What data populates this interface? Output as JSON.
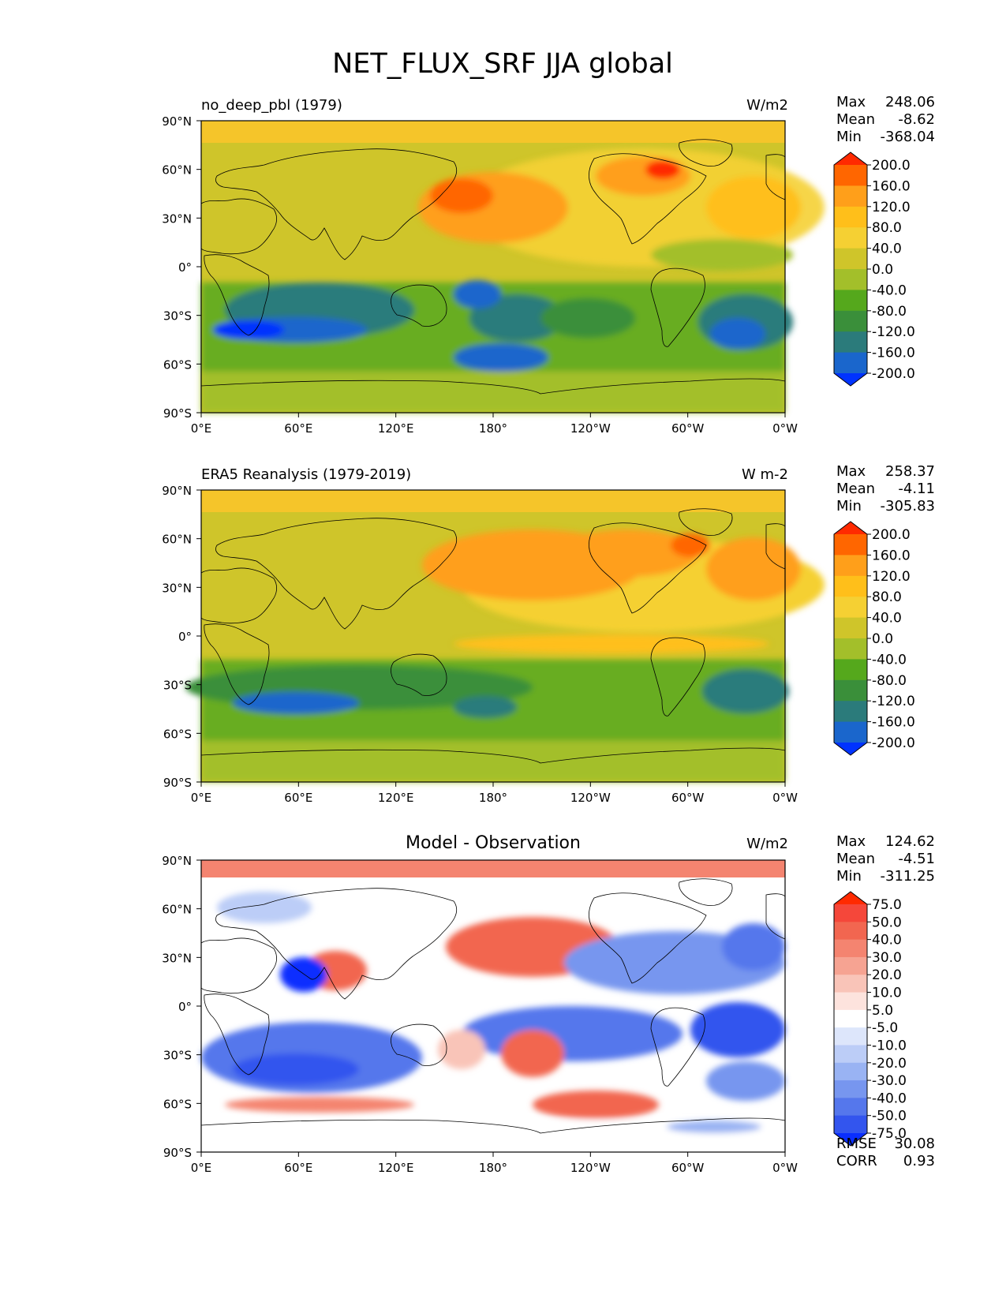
{
  "figure": {
    "title": "NET_FLUX_SRF JJA global"
  },
  "chart_data": [
    {
      "type": "heatmap",
      "panel": "test",
      "title": "no_deep_pbl (1979)",
      "units": "W/m2",
      "stats": {
        "max_label": "Max",
        "max": "248.06",
        "mean_label": "Mean",
        "mean": "-8.62",
        "min_label": "Min",
        "min": "-368.04"
      },
      "xlabels": [
        "0°E",
        "60°E",
        "120°E",
        "180°",
        "120°W",
        "60°W",
        "0°W"
      ],
      "ylabels": [
        "90°N",
        "60°N",
        "30°N",
        "0°",
        "30°S",
        "60°S",
        "90°S"
      ],
      "xlim": [
        0,
        360
      ],
      "ylim": [
        -90,
        90
      ],
      "colorbar": {
        "levels": [
          "200.0",
          "160.0",
          "120.0",
          "80.0",
          "40.0",
          "0.0",
          "-40.0",
          "-80.0",
          "-120.0",
          "-160.0",
          "-200.0"
        ],
        "colors": [
          "#ff2a00",
          "#ff6600",
          "#ff9f1a",
          "#ffbf1a",
          "#f5d033",
          "#cfc52a",
          "#a3bf2a",
          "#55a81c",
          "#3a8f3a",
          "#2b7b7b",
          "#1a66cc",
          "#0033ff"
        ]
      }
    },
    {
      "type": "heatmap",
      "panel": "reference",
      "title": "ERA5 Reanalysis (1979-2019)",
      "units": "W m-2",
      "stats": {
        "max_label": "Max",
        "max": "258.37",
        "mean_label": "Mean",
        "mean": "-4.11",
        "min_label": "Min",
        "min": "-305.83"
      },
      "xlabels": [
        "0°E",
        "60°E",
        "120°E",
        "180°",
        "120°W",
        "60°W",
        "0°W"
      ],
      "ylabels": [
        "90°N",
        "60°N",
        "30°N",
        "0°",
        "30°S",
        "60°S",
        "90°S"
      ],
      "xlim": [
        0,
        360
      ],
      "ylim": [
        -90,
        90
      ],
      "colorbar": {
        "levels": [
          "200.0",
          "160.0",
          "120.0",
          "80.0",
          "40.0",
          "0.0",
          "-40.0",
          "-80.0",
          "-120.0",
          "-160.0",
          "-200.0"
        ],
        "colors": [
          "#ff2a00",
          "#ff6600",
          "#ff9f1a",
          "#ffbf1a",
          "#f5d033",
          "#cfc52a",
          "#a3bf2a",
          "#55a81c",
          "#3a8f3a",
          "#2b7b7b",
          "#1a66cc",
          "#0033ff"
        ]
      }
    },
    {
      "type": "heatmap",
      "panel": "difference",
      "title": "Model - Observation",
      "units": "W/m2",
      "stats": {
        "max_label": "Max",
        "max": "124.62",
        "mean_label": "Mean",
        "mean": "-4.51",
        "min_label": "Min",
        "min": "-311.25",
        "rmse_label": "RMSE",
        "rmse": "30.08",
        "corr_label": "CORR",
        "corr": "0.93"
      },
      "xlabels": [
        "0°E",
        "60°E",
        "120°E",
        "180°",
        "120°W",
        "60°W",
        "0°W"
      ],
      "ylabels": [
        "90°N",
        "60°N",
        "30°N",
        "0°",
        "30°S",
        "60°S",
        "90°S"
      ],
      "xlim": [
        0,
        360
      ],
      "ylim": [
        -90,
        90
      ],
      "colorbar": {
        "levels": [
          "75.0",
          "50.0",
          "40.0",
          "30.0",
          "20.0",
          "10.0",
          "5.0",
          "-5.0",
          "-10.0",
          "-20.0",
          "-30.0",
          "-40.0",
          "-50.0",
          "-75.0"
        ],
        "colors": [
          "#ff2a00",
          "#f5473a",
          "#f26650",
          "#f48470",
          "#f6a392",
          "#f9c4b8",
          "#fde3dd",
          "#ffffff",
          "#dde6fb",
          "#bccdf7",
          "#99b3f3",
          "#7796ef",
          "#5577ec",
          "#3355ee",
          "#0a2eff"
        ]
      }
    }
  ]
}
